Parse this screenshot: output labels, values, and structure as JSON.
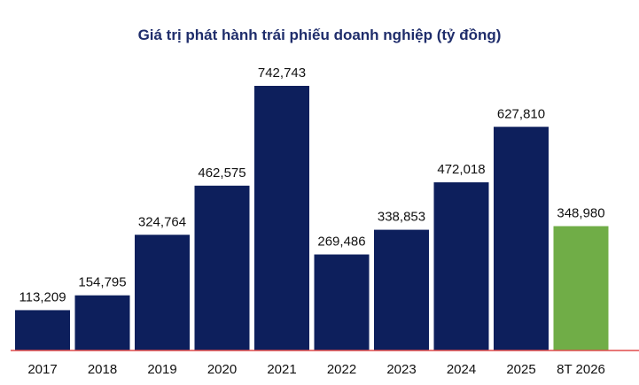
{
  "chart_data": {
    "type": "bar",
    "title": "Giá trị phát hành trái phiếu doanh nghiệp (tỷ đồng)",
    "categories": [
      "2017",
      "2018",
      "2019",
      "2020",
      "2021",
      "2022",
      "2023",
      "2024",
      "2025",
      "8T 2026"
    ],
    "values": [
      113209,
      154795,
      324764,
      462575,
      742743,
      269486,
      338853,
      472018,
      627810,
      348980
    ],
    "value_labels": [
      "113,209",
      "154,795",
      "324,764",
      "462,575",
      "742,743",
      "269,486",
      "338,853",
      "472,018",
      "627,810",
      "348,980"
    ],
    "ylim": [
      0,
      742743
    ],
    "grid": false,
    "colors": {
      "bar": "#0d1f5c",
      "highlight": "#70ad47",
      "baseline": "#e04b4b"
    },
    "highlight_index": 9
  }
}
